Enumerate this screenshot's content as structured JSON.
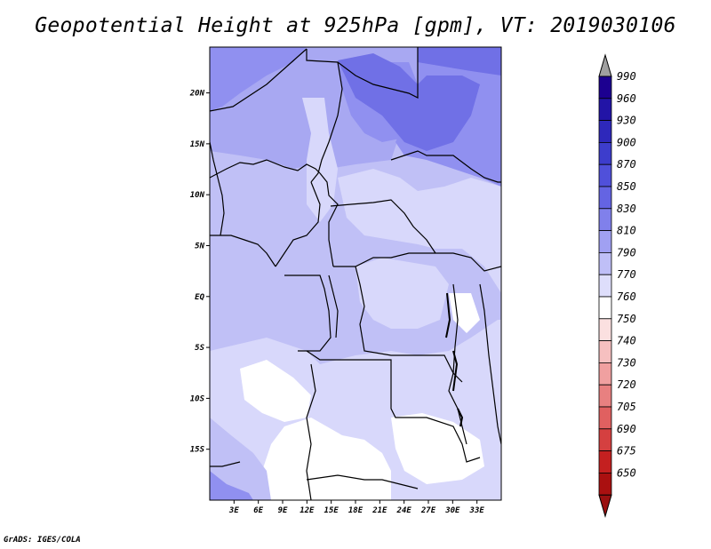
{
  "title": "Geopotential Height at 925hPa [gpm], VT: 2019030106",
  "credit": "GrADS: IGES/COLA",
  "map": {
    "lon_range": [
      0,
      36
    ],
    "lat_range": [
      -20,
      24.5
    ],
    "lat_ticks": [
      "20N",
      "15N",
      "10N",
      "5N",
      "EQ",
      "5S",
      "10S",
      "15S"
    ],
    "lat_tick_values": [
      20,
      15,
      10,
      5,
      0,
      -5,
      -10,
      -15
    ],
    "lon_ticks": [
      "3E",
      "6E",
      "9E",
      "12E",
      "15E",
      "18E",
      "21E",
      "24E",
      "27E",
      "30E",
      "33E"
    ],
    "lon_tick_values": [
      3,
      6,
      9,
      12,
      15,
      18,
      21,
      24,
      27,
      30,
      33
    ]
  },
  "colorbar": {
    "levels": [
      "990",
      "960",
      "930",
      "900",
      "870",
      "850",
      "830",
      "810",
      "790",
      "770",
      "760",
      "750",
      "740",
      "730",
      "720",
      "705",
      "690",
      "675",
      "650"
    ],
    "colors": [
      "#1c0090",
      "#2214a6",
      "#2e28bb",
      "#3d3dcc",
      "#5050da",
      "#6464e3",
      "#8080eb",
      "#a0a0f2",
      "#bfbff7",
      "#dedefb",
      "#ffffff",
      "#fbe0e0",
      "#f6c0c0",
      "#f0a0a0",
      "#e88080",
      "#e06060",
      "#d54040",
      "#c42020",
      "#aa1010"
    ],
    "top_arrow_color": "#a0a0a0",
    "bottom_arrow_color": "#9a1010"
  },
  "fill_colors": {
    "c990": "#8a8af0",
    "c870": "#7070e6",
    "c850": "#9090f0",
    "c830": "#a8a8f2",
    "c810": "#c0c0f6",
    "c790": "#d8d8fb",
    "c770": "#ffffff"
  }
}
